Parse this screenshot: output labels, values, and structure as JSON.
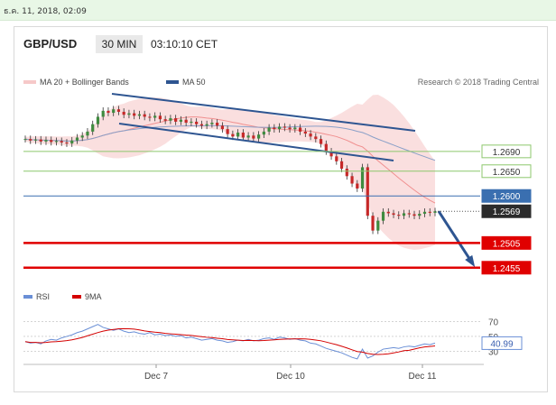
{
  "topbar": {
    "timestamp": "ธ.ค. 11, 2018, 02:09"
  },
  "header": {
    "pair": "GBP/USD",
    "interval": "30 MIN",
    "time": "03:10:10 CET"
  },
  "legend": {
    "ma20_label": "MA 20 + Bollinger Bands",
    "ma50_label": "MA 50",
    "credit": "Research © 2018 Trading Central"
  },
  "colors": {
    "ma20_band": "#f6c9c9",
    "ma20_line": "#f08f8f",
    "ma50": "#2e5591",
    "resistance_green": "#8cc76c",
    "support_red": "#e00000",
    "pivot_blue": "#3a6fb0",
    "rsi": "#6a8fd6",
    "rsi_ma": "#d40000"
  },
  "chart_data": [
    {
      "type": "line",
      "title": "GBP/USD",
      "x_ticks": [
        "Dec 7",
        "Dec 10",
        "Dec 11"
      ],
      "price_levels": [
        {
          "label": "1.2690",
          "value": 1.269,
          "kind": "resistance"
        },
        {
          "label": "1.2650",
          "value": 1.265,
          "kind": "resistance"
        },
        {
          "label": "1.2600",
          "value": 1.26,
          "kind": "pivot"
        },
        {
          "label": "1.2569",
          "value": 1.2569,
          "kind": "last"
        },
        {
          "label": "1.2505",
          "value": 1.2505,
          "kind": "support"
        },
        {
          "label": "1.2455",
          "value": 1.2455,
          "kind": "support"
        }
      ],
      "series": [
        {
          "name": "MA 20 + Bollinger Bands"
        },
        {
          "name": "MA 50"
        }
      ],
      "close_prices": [
        1.2715,
        1.2712,
        1.2714,
        1.271,
        1.2713,
        1.2709,
        1.2711,
        1.2708,
        1.2706,
        1.2712,
        1.2718,
        1.2722,
        1.273,
        1.2745,
        1.276,
        1.2772,
        1.2768,
        1.2775,
        1.277,
        1.2764,
        1.2767,
        1.2762,
        1.2765,
        1.276,
        1.2758,
        1.2762,
        1.2755,
        1.2752,
        1.2757,
        1.275,
        1.2754,
        1.2748,
        1.275,
        1.2745,
        1.2742,
        1.2745,
        1.2748,
        1.2742,
        1.2735,
        1.2725,
        1.272,
        1.2728,
        1.2718,
        1.2722,
        1.2716,
        1.2724,
        1.273,
        1.2738,
        1.2735,
        1.274,
        1.2738,
        1.2735,
        1.2738,
        1.273,
        1.2726,
        1.272,
        1.2715,
        1.2705,
        1.269,
        1.268,
        1.267,
        1.2655,
        1.264,
        1.2625,
        1.2615,
        1.2658,
        1.256,
        1.253,
        1.255,
        1.2568,
        1.2565,
        1.2562,
        1.256,
        1.2565,
        1.2563,
        1.256,
        1.2564,
        1.2568,
        1.2566,
        1.2569
      ],
      "forecast": {
        "from": 1.2569,
        "to": 1.2455,
        "direction": "down"
      }
    },
    {
      "type": "line",
      "series": [
        {
          "name": "RSI",
          "last": 40.99
        },
        {
          "name": "9MA"
        }
      ],
      "y_ticks": [
        70,
        50,
        30
      ],
      "last_label": "40.99",
      "rsi_values": [
        43,
        41,
        42,
        40,
        44,
        46,
        45,
        48,
        50,
        52,
        55,
        57,
        60,
        63,
        66,
        62,
        60,
        58,
        60,
        57,
        55,
        56,
        54,
        53,
        55,
        52,
        53,
        51,
        52,
        50,
        51,
        48,
        49,
        47,
        45,
        46,
        47,
        45,
        44,
        42,
        43,
        45,
        44,
        46,
        44,
        45,
        47,
        48,
        46,
        49,
        48,
        46,
        47,
        45,
        44,
        41,
        40,
        37,
        34,
        32,
        30,
        28,
        25,
        22,
        20,
        33,
        21,
        24,
        29,
        33,
        34,
        35,
        34,
        36,
        37,
        36,
        38,
        40,
        39,
        41
      ]
    }
  ]
}
